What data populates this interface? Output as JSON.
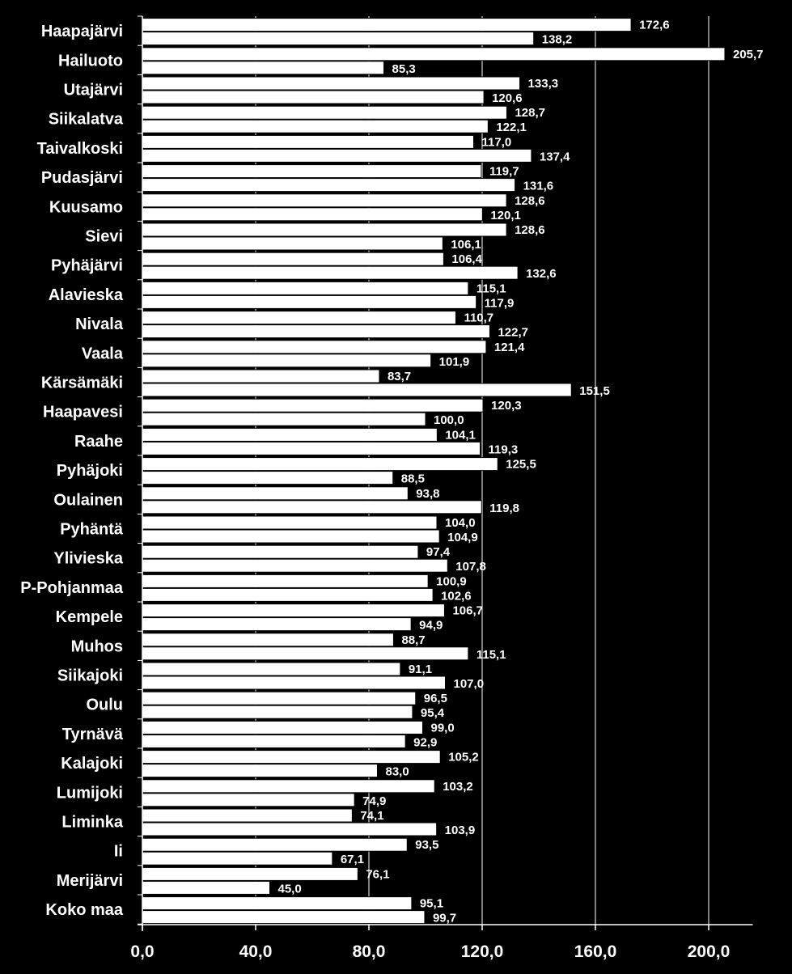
{
  "chart_data": {
    "type": "bar",
    "orientation": "horizontal",
    "categories": [
      "Haapajärvi",
      "Hailuoto",
      "Utajärvi",
      "Siikalatva",
      "Taivalkoski",
      "Pudasjärvi",
      "Kuusamo",
      "Sievi",
      "Pyhäjärvi",
      "Alavieska",
      "Nivala",
      "Vaala",
      "Kärsämäki",
      "Haapavesi",
      "Raahe",
      "Pyhäjoki",
      "Oulainen",
      "Pyhäntä",
      "Ylivieska",
      "P-Pohjanmaa",
      "Kempele",
      "Muhos",
      "Siikajoki",
      "Oulu",
      "Tyrnävä",
      "Kalajoki",
      "Lumijoki",
      "Liminka",
      "Ii",
      "Merijärvi",
      "Koko maa"
    ],
    "series": [
      {
        "name": "series-1",
        "values": [
          172.6,
          205.7,
          133.3,
          128.7,
          117.0,
          119.7,
          128.6,
          128.6,
          106.4,
          115.1,
          110.7,
          121.4,
          83.7,
          120.3,
          104.1,
          125.5,
          93.8,
          104.0,
          97.4,
          100.9,
          106.7,
          88.7,
          91.1,
          96.5,
          99.0,
          105.2,
          103.2,
          74.1,
          93.5,
          76.1,
          95.1
        ]
      },
      {
        "name": "series-2",
        "values": [
          138.2,
          85.3,
          120.6,
          122.1,
          137.4,
          131.6,
          120.1,
          106.1,
          132.6,
          117.9,
          122.7,
          101.9,
          151.5,
          100.0,
          119.3,
          88.5,
          119.8,
          104.9,
          107.8,
          102.6,
          94.9,
          115.1,
          107.0,
          95.4,
          92.9,
          83.0,
          74.9,
          103.9,
          67.1,
          45.0,
          99.7
        ]
      }
    ],
    "data_labels": [
      [
        "172,6",
        "205,7",
        "133,3",
        "128,7",
        "117,0",
        "119,7",
        "128,6",
        "128,6",
        "106,4",
        "115,1",
        "110,7",
        "121,4",
        "83,7",
        "120,3",
        "104,1",
        "125,5",
        "93,8",
        "104,0",
        "97,4",
        "100,9",
        "106,7",
        "88,7",
        "91,1",
        "96,5",
        "99,0",
        "105,2",
        "103,2",
        "74,1",
        "93,5",
        "76,1",
        "95,1"
      ],
      [
        "138,2",
        "85,3",
        "120,6",
        "122,1",
        "137,4",
        "131,6",
        "120,1",
        "106,1",
        "132,6",
        "117,9",
        "122,7",
        "101,9",
        "151,5",
        "100,0",
        "119,3",
        "88,5",
        "119,8",
        "104,9",
        "107,8",
        "102,6",
        "94,9",
        "115,1",
        "107,0",
        "95,4",
        "92,9",
        "83,0",
        "74,9",
        "103,9",
        "67,1",
        "45,0",
        "99,7"
      ]
    ],
    "x_ticks": [
      "0,0",
      "40,0",
      "80,0",
      "120,0",
      "160,0",
      "200,0"
    ],
    "xlim": [
      0,
      215
    ],
    "grid": true,
    "title": "",
    "xlabel": "",
    "ylabel": "",
    "colors": {
      "background": "#000000",
      "bar_fill": "#ffffff",
      "bar_stroke": "#000000",
      "text": "#ffffff",
      "gridline": "#ffffff"
    }
  }
}
